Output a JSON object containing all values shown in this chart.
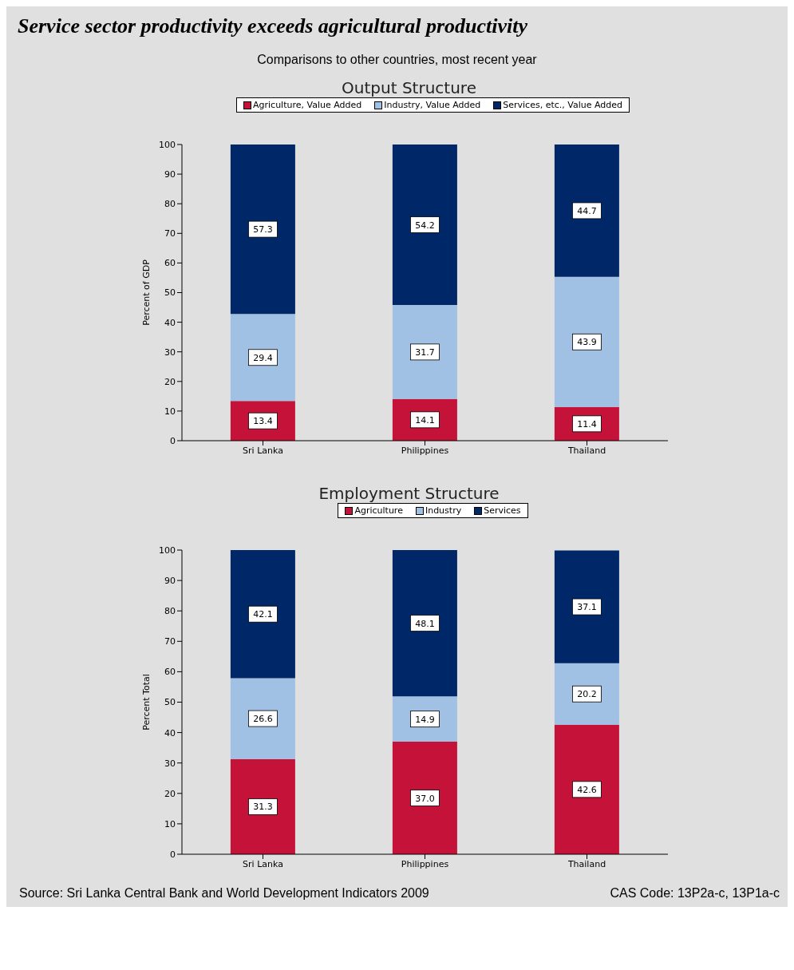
{
  "chart_data": [
    {
      "type": "other",
      "title": "Service sector productivity exceeds agricultural productivity",
      "subtitle": "Comparisons to other countries, most recent year"
    },
    {
      "type": "bar",
      "title": "Output Structure",
      "ylabel": "Percent of GDP",
      "categories": [
        "Sri Lanka",
        "Philippines",
        "Thailand"
      ],
      "stacked": true,
      "legend": "top",
      "grid": false,
      "ylim": [
        0,
        100
      ],
      "yticks": [
        0,
        10,
        20,
        30,
        40,
        50,
        60,
        70,
        80,
        90,
        100
      ],
      "series": [
        {
          "name": "Agriculture, Value Added",
          "color": "#c41239",
          "values": [
            13.4,
            14.1,
            11.4
          ],
          "value_labels": [
            "13.4",
            "14.1",
            "11.4"
          ]
        },
        {
          "name": "Industry, Value Added",
          "color": "#a0c0e4",
          "values": [
            29.4,
            31.7,
            43.9
          ],
          "value_labels": [
            "29.4",
            "31.7",
            "43.9"
          ]
        },
        {
          "name": "Services, etc., Value Added",
          "color": "#002868",
          "values": [
            57.3,
            54.2,
            44.7
          ],
          "value_labels": [
            "57.3",
            "54.2",
            "44.7"
          ]
        }
      ]
    },
    {
      "type": "bar",
      "title": "Employment Structure",
      "ylabel": "Percent Total",
      "categories": [
        "Sri Lanka",
        "Philippines",
        "Thailand"
      ],
      "stacked": true,
      "legend": "top",
      "grid": false,
      "ylim": [
        0,
        100
      ],
      "yticks": [
        0,
        10,
        20,
        30,
        40,
        50,
        60,
        70,
        80,
        90,
        100
      ],
      "series": [
        {
          "name": "Agriculture",
          "color": "#c41239",
          "values": [
            31.3,
            37.0,
            42.6
          ],
          "value_labels": [
            "31.3",
            "37.0",
            "42.6"
          ]
        },
        {
          "name": "Industry",
          "color": "#a0c0e4",
          "values": [
            26.6,
            14.9,
            20.2
          ],
          "value_labels": [
            "26.6",
            "14.9",
            "20.2"
          ]
        },
        {
          "name": "Services",
          "color": "#002868",
          "values": [
            42.1,
            48.1,
            37.1
          ],
          "value_labels": [
            "42.1",
            "48.1",
            "37.1"
          ]
        }
      ],
      "annotations": [
        "Source: Sri Lanka Central Bank and World Development Indicators 2009",
        "CAS Code: 13P2a-c, 13P1a-c"
      ]
    }
  ]
}
